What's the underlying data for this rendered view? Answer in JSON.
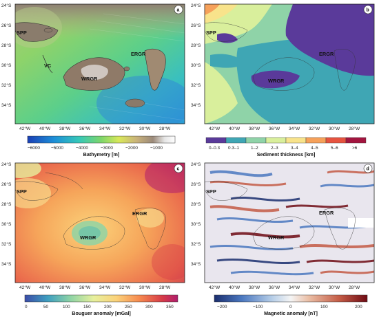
{
  "panels": [
    {
      "letter": "a",
      "labels": {
        "spp": "SPP",
        "vc": "VC",
        "ergr": "ERGR",
        "wrgr": "WRGR"
      },
      "colorbar": {
        "title": "Bathymetry [m]",
        "ticks": [
          "−6000",
          "−5000",
          "−4000",
          "−3000",
          "−2000",
          "−1000"
        ],
        "colors": [
          "#1a3fb5",
          "#1d8fd8",
          "#36c8b8",
          "#7ed66a",
          "#d9e85a",
          "#c9b27a",
          "#9b8a7a",
          "#e6e6e6",
          "#ffffff"
        ]
      }
    },
    {
      "letter": "b",
      "labels": {
        "spp": "SPP",
        "ergr": "ERGR",
        "wrgr": "WRGR"
      },
      "colorbar": {
        "title": "Sediment thickness [km]",
        "bins": [
          "0–0.3",
          "0.3–1",
          "1–2",
          "2–3",
          "3–4",
          "4–5",
          "5–6",
          ">6"
        ],
        "colors": [
          "#5a3a9a",
          "#3fa6b4",
          "#8fd3a8",
          "#d9ef9c",
          "#f8e38b",
          "#f6a15a",
          "#e6533f",
          "#a3153f"
        ]
      }
    },
    {
      "letter": "c",
      "labels": {
        "spp": "SPP",
        "ergr": "ERGR",
        "wrgr": "WRGR"
      },
      "colorbar": {
        "title": "Bouguer anomaly [mGal]",
        "ticks": [
          "0",
          "50",
          "100",
          "150",
          "200",
          "250",
          "300",
          "350"
        ],
        "colors": [
          "#3b4ca8",
          "#3f9fc0",
          "#8fd4a5",
          "#e7f09d",
          "#fbd27a",
          "#f6894f",
          "#d63b48",
          "#b01d6e"
        ]
      }
    },
    {
      "letter": "d",
      "labels": {
        "spp": "SPP",
        "ergr": "ERGR",
        "wrgr": "WRGR"
      },
      "colorbar": {
        "title": "Magnetic anomaly [nT]",
        "ticks": [
          "−200",
          "−100",
          "0",
          "100",
          "200"
        ],
        "colors": [
          "#1a2e6e",
          "#4b78c0",
          "#b8cfe8",
          "#f5f5f5",
          "#eabda4",
          "#c45b45",
          "#6e0b14"
        ]
      }
    }
  ],
  "axes": {
    "x_ticks": [
      "42°W",
      "40°W",
      "38°W",
      "36°W",
      "34°W",
      "32°W",
      "30°W",
      "28°W"
    ],
    "y_ticks": [
      "24°S",
      "26°S",
      "28°S",
      "30°S",
      "32°S",
      "34°S"
    ]
  }
}
